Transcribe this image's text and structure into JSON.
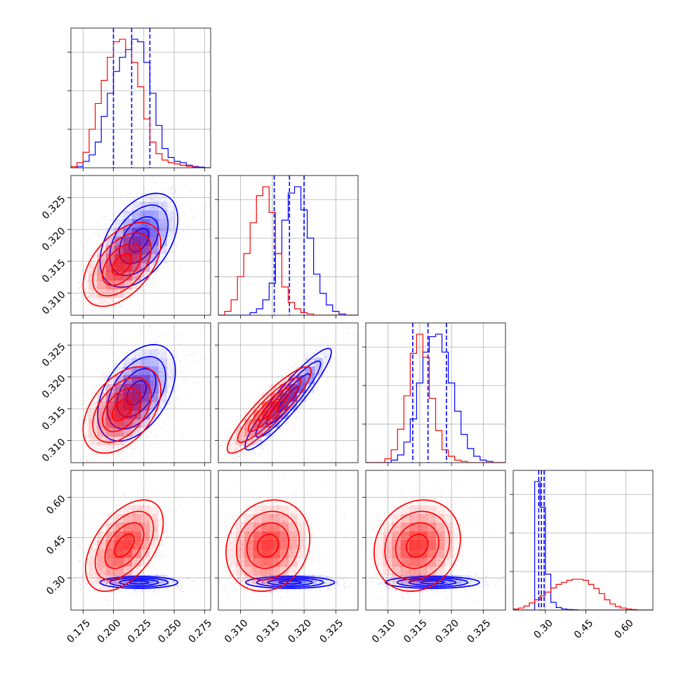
{
  "chart_data": {
    "type": "corner",
    "title": "",
    "grid": true,
    "parameters": [
      {
        "label": "",
        "range": [
          0.165,
          0.28
        ],
        "ticks": [
          0.175,
          0.2,
          0.225,
          0.25,
          0.275
        ],
        "tick_labels": [
          "0.175",
          "0.200",
          "0.225",
          "0.250",
          "0.275"
        ]
      },
      {
        "label": "",
        "range": [
          0.3065,
          0.3285
        ],
        "ticks": [
          0.31,
          0.315,
          0.32,
          0.325
        ],
        "tick_labels": [
          "0.310",
          "0.315",
          "0.320",
          "0.325"
        ]
      },
      {
        "label": "",
        "range": [
          0.3065,
          0.3285
        ],
        "ticks": [
          0.31,
          0.315,
          0.32,
          0.325
        ],
        "tick_labels": [
          "0.310",
          "0.315",
          "0.320",
          "0.325"
        ]
      },
      {
        "label": "",
        "range": [
          0.18,
          0.7
        ],
        "ticks": [
          0.3,
          0.45,
          0.6
        ],
        "tick_labels": [
          "0.30",
          "0.45",
          "0.60"
        ]
      }
    ],
    "series": [
      {
        "color": "#0000ff",
        "marginals": [
          {
            "edges": [
              0.165,
              0.17,
              0.175,
              0.18,
              0.185,
              0.19,
              0.195,
              0.2,
              0.205,
              0.21,
              0.215,
              0.22,
              0.225,
              0.23,
              0.235,
              0.24,
              0.245,
              0.25,
              0.255,
              0.26,
              0.265,
              0.27,
              0.275,
              0.28
            ],
            "counts": [
              0,
              0.01,
              0.05,
              0.1,
              0.2,
              0.4,
              0.58,
              0.75,
              0.86,
              0.92,
              1.0,
              0.98,
              0.82,
              0.58,
              0.33,
              0.15,
              0.08,
              0.05,
              0.04,
              0.02,
              0.01,
              0.005,
              0
            ]
          },
          {
            "edges": [
              0.3065,
              0.3075,
              0.3085,
              0.3095,
              0.3105,
              0.3115,
              0.3125,
              0.3135,
              0.3145,
              0.3155,
              0.3165,
              0.3175,
              0.3185,
              0.3195,
              0.3205,
              0.3215,
              0.3225,
              0.3235,
              0.3245,
              0.3255,
              0.3265,
              0.3275,
              0.3285
            ],
            "counts": [
              0,
              0,
              0,
              0,
              0,
              0.02,
              0.05,
              0.12,
              0.25,
              0.48,
              0.74,
              0.95,
              1.0,
              0.82,
              0.6,
              0.32,
              0.17,
              0.08,
              0.03,
              0.01,
              0,
              0
            ]
          },
          {
            "edges": [
              0.3065,
              0.3075,
              0.3085,
              0.3095,
              0.3105,
              0.3115,
              0.3125,
              0.3135,
              0.3145,
              0.3155,
              0.3165,
              0.3175,
              0.3185,
              0.3195,
              0.3205,
              0.3215,
              0.3225,
              0.3235,
              0.3245,
              0.3255,
              0.3265,
              0.3275,
              0.3285
            ],
            "counts": [
              0,
              0,
              0,
              0,
              0.02,
              0.06,
              0.16,
              0.34,
              0.62,
              0.86,
              0.98,
              1.0,
              0.86,
              0.62,
              0.4,
              0.22,
              0.11,
              0.05,
              0.02,
              0.01,
              0,
              0
            ]
          },
          {
            "edges": [
              0.18,
              0.2,
              0.22,
              0.24,
              0.26,
              0.28,
              0.3,
              0.32,
              0.34,
              0.36,
              0.38,
              0.4,
              0.42,
              0.44,
              0.46,
              0.48,
              0.5,
              0.52,
              0.54,
              0.56,
              0.58,
              0.6,
              0.62,
              0.64,
              0.66,
              0.68,
              0.7
            ],
            "counts": [
              0,
              0,
              0,
              0,
              2.5,
              2.0,
              0.7,
              0.15,
              0.05,
              0.02,
              0.01,
              0.005,
              0,
              0,
              0,
              0,
              0,
              0,
              0,
              0,
              0,
              0,
              0,
              0,
              0,
              0
            ]
          }
        ],
        "quantiles": [
          [
            0.2,
            0.215,
            0.23
          ],
          [
            0.3153,
            0.3177,
            0.32
          ],
          [
            0.3139,
            0.3163,
            0.3192
          ],
          [
            0.275,
            0.285,
            0.295
          ]
        ],
        "scatter_ellipses": [
          {
            "pair": [
              0,
              1
            ],
            "mean": [
              0.221,
              0.3183
            ],
            "sd": [
              0.016,
              0.0037
            ],
            "rho": 0.45
          },
          {
            "pair": [
              0,
              2
            ],
            "mean": [
              0.219,
              0.3175
            ],
            "sd": [
              0.016,
              0.0038
            ],
            "rho": 0.45
          },
          {
            "pair": [
              1,
              2
            ],
            "mean": [
              0.3175,
              0.3165
            ],
            "sd": [
              0.0034,
              0.004
            ],
            "rho": 0.93
          },
          {
            "pair": [
              0,
              3
            ],
            "mean": [
              0.221,
              0.283
            ],
            "sd": [
              0.016,
              0.011
            ],
            "rho": 0.0
          },
          {
            "pair": [
              1,
              3
            ],
            "mean": [
              0.3178,
              0.283
            ],
            "sd": [
              0.0035,
              0.011
            ],
            "rho": 0.0
          },
          {
            "pair": [
              2,
              3
            ],
            "mean": [
              0.317,
              0.283
            ],
            "sd": [
              0.0037,
              0.011
            ],
            "rho": 0.0
          }
        ]
      },
      {
        "color": "#ff0000",
        "marginals": [
          {
            "edges": [
              0.165,
              0.17,
              0.175,
              0.18,
              0.185,
              0.19,
              0.195,
              0.2,
              0.205,
              0.21,
              0.215,
              0.22,
              0.225,
              0.23,
              0.235,
              0.24,
              0.245,
              0.25,
              0.255,
              0.26,
              0.265,
              0.27,
              0.275,
              0.28
            ],
            "counts": [
              0.01,
              0.04,
              0.12,
              0.3,
              0.5,
              0.68,
              0.86,
              0.98,
              1.0,
              0.92,
              0.82,
              0.63,
              0.38,
              0.2,
              0.11,
              0.06,
              0.04,
              0.03,
              0.02,
              0.01,
              0.005,
              0,
              0
            ]
          },
          {
            "edges": [
              0.3065,
              0.3075,
              0.3085,
              0.3095,
              0.3105,
              0.3115,
              0.3125,
              0.3135,
              0.3145,
              0.3155,
              0.3165,
              0.3175,
              0.3185,
              0.3195,
              0.3205,
              0.3215,
              0.3225,
              0.3235,
              0.3245,
              0.3255,
              0.3265,
              0.3275,
              0.3285
            ],
            "counts": [
              0,
              0.03,
              0.12,
              0.3,
              0.48,
              0.72,
              0.93,
              1.0,
              0.8,
              0.48,
              0.22,
              0.1,
              0.05,
              0.02,
              0.01,
              0,
              0,
              0,
              0,
              0,
              0,
              0
            ]
          },
          {
            "edges": [
              0.3065,
              0.3075,
              0.3085,
              0.3095,
              0.3105,
              0.3115,
              0.3125,
              0.3135,
              0.3145,
              0.3155,
              0.3165,
              0.3175,
              0.3185,
              0.3195,
              0.3205,
              0.3215,
              0.3225,
              0.3235,
              0.3245,
              0.3255,
              0.3265,
              0.3275,
              0.3285
            ],
            "counts": [
              0,
              0,
              0,
              0.03,
              0.1,
              0.26,
              0.52,
              0.85,
              1.0,
              0.82,
              0.5,
              0.25,
              0.1,
              0.05,
              0.02,
              0.01,
              0,
              0,
              0,
              0,
              0,
              0
            ]
          },
          {
            "edges": [
              0.18,
              0.2,
              0.22,
              0.24,
              0.26,
              0.28,
              0.3,
              0.32,
              0.34,
              0.36,
              0.38,
              0.4,
              0.42,
              0.44,
              0.46,
              0.48,
              0.5,
              0.52,
              0.54,
              0.56,
              0.58,
              0.6,
              0.62,
              0.64,
              0.66,
              0.68,
              0.7
            ],
            "counts": [
              0.02,
              0.04,
              0.08,
              0.14,
              0.2,
              0.28,
              0.35,
              0.43,
              0.5,
              0.54,
              0.58,
              0.6,
              0.6,
              0.58,
              0.5,
              0.42,
              0.32,
              0.2,
              0.12,
              0.07,
              0.04,
              0.02,
              0.01,
              0,
              0,
              0
            ]
          }
        ],
        "scatter_ellipses": [
          {
            "pair": [
              0,
              1
            ],
            "mean": [
              0.207,
              0.3145
            ],
            "sd": [
              0.016,
              0.0033
            ],
            "rho": 0.5
          },
          {
            "pair": [
              0,
              2
            ],
            "mean": [
              0.207,
              0.3148
            ],
            "sd": [
              0.016,
              0.0034
            ],
            "rho": 0.45
          },
          {
            "pair": [
              1,
              2
            ],
            "mean": [
              0.3145,
              0.3148
            ],
            "sd": [
              0.0033,
              0.0034
            ],
            "rho": 0.9
          },
          {
            "pair": [
              0,
              3
            ],
            "mean": [
              0.209,
              0.42
            ],
            "sd": [
              0.016,
              0.085
            ],
            "rho": 0.5
          },
          {
            "pair": [
              1,
              3
            ],
            "mean": [
              0.3143,
              0.42
            ],
            "sd": [
              0.0033,
              0.085
            ],
            "rho": 0.15
          },
          {
            "pair": [
              2,
              3
            ],
            "mean": [
              0.3146,
              0.42
            ],
            "sd": [
              0.0034,
              0.085
            ],
            "rho": 0.15
          }
        ]
      }
    ]
  }
}
